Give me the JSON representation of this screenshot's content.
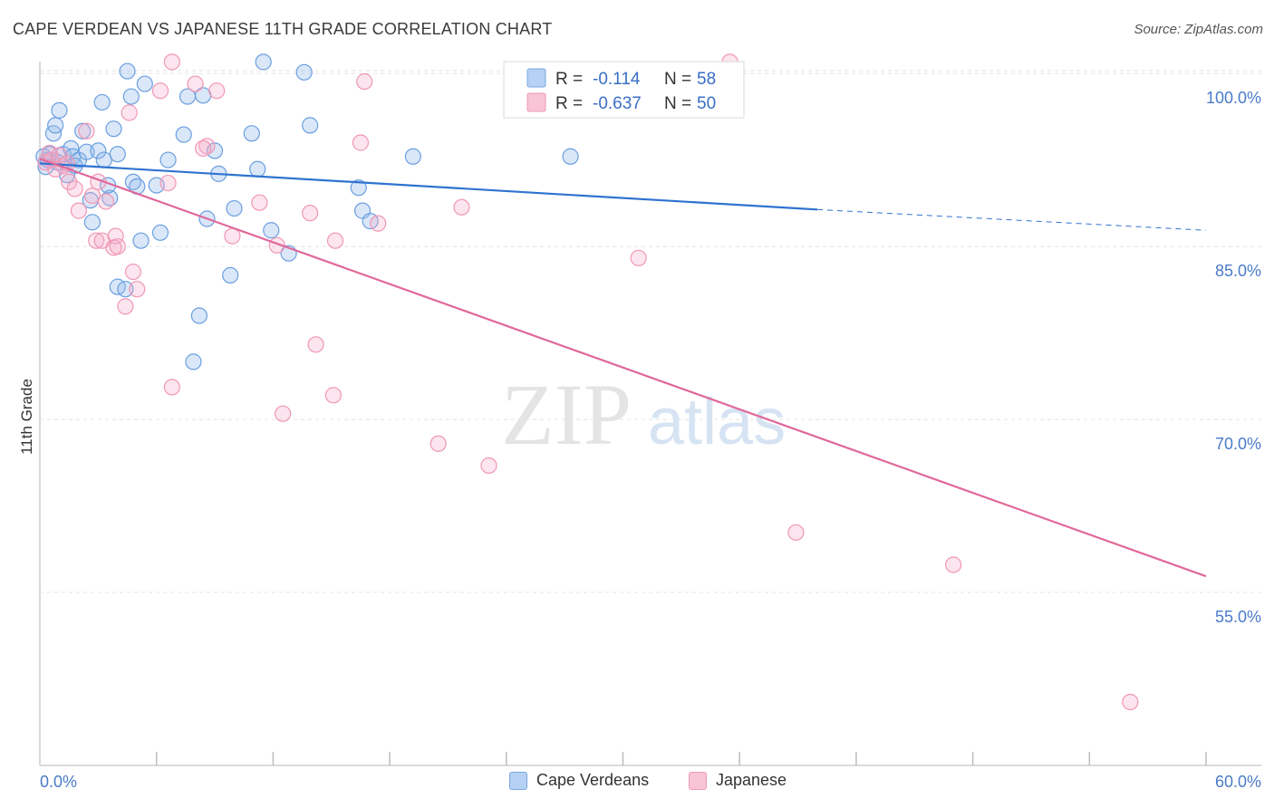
{
  "title": "CAPE VERDEAN VS JAPANESE 11TH GRADE CORRELATION CHART",
  "source": "Source: ZipAtlas.com",
  "watermark": {
    "zip": "ZIP",
    "atlas": "atlas"
  },
  "chart_data": {
    "type": "scatter",
    "xlabel": "",
    "ylabel": "11th Grade",
    "xlim": [
      0.0,
      60.0
    ],
    "ylim": [
      40.0,
      101.5
    ],
    "x_tick_labels": [
      "0.0%",
      "60.0%"
    ],
    "y_ticks": [
      {
        "value": 100.0,
        "label": "100.0%"
      },
      {
        "value": 85.0,
        "label": "85.0%"
      },
      {
        "value": 70.0,
        "label": "70.0%"
      },
      {
        "value": 55.0,
        "label": "55.0%"
      }
    ],
    "legend": {
      "r_label": "R =",
      "n_label": "N =",
      "entries": [
        {
          "name": "Cape Verdeans",
          "r": "-0.114",
          "n": "58"
        },
        {
          "name": "Japanese",
          "r": "-0.637",
          "n": "50"
        }
      ]
    },
    "series": [
      {
        "name": "Cape Verdeans",
        "color": "#6a9fe0",
        "line_color": "#2f73d0",
        "trend": {
          "x_start": 0.0,
          "y_start": 92.2,
          "x_end": 40.0,
          "y_end": 88.2,
          "dash_to_x": 60.0,
          "dash_to_y": 86.4
        },
        "points": [
          [
            0.2,
            92.8
          ],
          [
            0.4,
            92.5
          ],
          [
            0.5,
            93.0
          ],
          [
            0.7,
            94.8
          ],
          [
            0.8,
            95.5
          ],
          [
            1.0,
            96.8
          ],
          [
            1.2,
            93.0
          ],
          [
            1.4,
            91.2
          ],
          [
            1.6,
            93.5
          ],
          [
            1.7,
            92.8
          ],
          [
            2.0,
            92.5
          ],
          [
            2.2,
            95.0
          ],
          [
            2.4,
            93.2
          ],
          [
            2.6,
            89.0
          ],
          [
            2.7,
            87.1
          ],
          [
            3.0,
            93.3
          ],
          [
            3.2,
            97.5
          ],
          [
            3.3,
            92.5
          ],
          [
            3.6,
            89.2
          ],
          [
            3.8,
            95.2
          ],
          [
            4.0,
            93.0
          ],
          [
            4.0,
            81.5
          ],
          [
            4.4,
            81.3
          ],
          [
            4.5,
            100.2
          ],
          [
            4.7,
            98.0
          ],
          [
            4.8,
            90.6
          ],
          [
            5.0,
            90.2
          ],
          [
            5.2,
            85.5
          ],
          [
            5.4,
            99.1
          ],
          [
            6.0,
            90.3
          ],
          [
            6.2,
            86.2
          ],
          [
            6.6,
            92.5
          ],
          [
            7.4,
            94.7
          ],
          [
            7.6,
            98.0
          ],
          [
            7.9,
            75.0
          ],
          [
            8.2,
            79.0
          ],
          [
            8.4,
            98.1
          ],
          [
            8.6,
            87.4
          ],
          [
            9.0,
            93.3
          ],
          [
            9.2,
            91.3
          ],
          [
            9.8,
            82.5
          ],
          [
            10.0,
            88.3
          ],
          [
            10.9,
            94.8
          ],
          [
            11.2,
            91.7
          ],
          [
            11.5,
            101.0
          ],
          [
            11.9,
            86.4
          ],
          [
            12.8,
            84.4
          ],
          [
            13.6,
            100.1
          ],
          [
            13.9,
            95.5
          ],
          [
            16.4,
            90.1
          ],
          [
            16.6,
            88.1
          ],
          [
            17.0,
            87.2
          ],
          [
            19.2,
            92.8
          ],
          [
            27.3,
            92.8
          ],
          [
            0.3,
            91.9
          ],
          [
            0.9,
            92.3
          ],
          [
            1.8,
            92.0
          ],
          [
            3.5,
            90.3
          ]
        ]
      },
      {
        "name": "Japanese",
        "color": "#f097b6",
        "line_color": "#e0689a",
        "trend": {
          "x_start": 0.0,
          "y_start": 92.6,
          "x_end": 60.0,
          "y_end": 56.4
        },
        "points": [
          [
            0.3,
            92.3
          ],
          [
            0.5,
            93.1
          ],
          [
            0.6,
            92.5
          ],
          [
            0.8,
            91.7
          ],
          [
            1.0,
            92.9
          ],
          [
            1.2,
            92.0
          ],
          [
            1.4,
            92.2
          ],
          [
            1.5,
            90.6
          ],
          [
            1.8,
            90.0
          ],
          [
            2.0,
            88.1
          ],
          [
            2.4,
            95.0
          ],
          [
            2.7,
            89.4
          ],
          [
            2.9,
            85.5
          ],
          [
            3.0,
            90.6
          ],
          [
            3.2,
            85.5
          ],
          [
            3.4,
            88.9
          ],
          [
            3.8,
            84.9
          ],
          [
            3.9,
            85.9
          ],
          [
            4.0,
            85.0
          ],
          [
            4.4,
            79.8
          ],
          [
            4.6,
            96.6
          ],
          [
            4.8,
            82.8
          ],
          [
            5.0,
            81.3
          ],
          [
            6.2,
            98.5
          ],
          [
            6.6,
            90.5
          ],
          [
            6.8,
            101.0
          ],
          [
            6.8,
            72.8
          ],
          [
            8.0,
            99.1
          ],
          [
            8.6,
            93.7
          ],
          [
            9.1,
            98.5
          ],
          [
            9.9,
            85.9
          ],
          [
            11.3,
            88.8
          ],
          [
            12.2,
            85.1
          ],
          [
            12.5,
            70.5
          ],
          [
            13.9,
            87.9
          ],
          [
            14.2,
            76.5
          ],
          [
            15.1,
            72.1
          ],
          [
            15.2,
            85.5
          ],
          [
            16.5,
            94.0
          ],
          [
            16.7,
            99.3
          ],
          [
            17.4,
            87.0
          ],
          [
            20.5,
            67.9
          ],
          [
            21.7,
            88.4
          ],
          [
            23.1,
            66.0
          ],
          [
            30.8,
            84.0
          ],
          [
            35.5,
            101.0
          ],
          [
            38.9,
            60.2
          ],
          [
            47.0,
            57.4
          ],
          [
            56.1,
            45.5
          ],
          [
            8.4,
            93.5
          ]
        ]
      }
    ]
  }
}
